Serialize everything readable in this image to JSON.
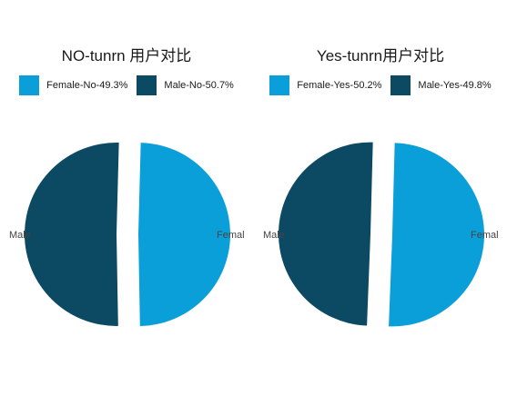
{
  "colors": {
    "female": "#0a9fd8",
    "male": "#0b4a62"
  },
  "chart_data": [
    {
      "type": "pie",
      "title": "NO-tunrn 用户对比",
      "legend": "top",
      "slices": [
        {
          "key": "female",
          "legend": "Female-No-49.3%",
          "label": "Femal",
          "value": 49.3
        },
        {
          "key": "male",
          "legend": "Male-No-50.7%",
          "label": "Male",
          "value": 50.7
        }
      ]
    },
    {
      "type": "pie",
      "title": "Yes-tunrn用户对比",
      "legend": "top",
      "slices": [
        {
          "key": "female",
          "legend": "Female-Yes-50.2%",
          "label": "Femal",
          "value": 50.2
        },
        {
          "key": "male",
          "legend": "Male-Yes-49.8%",
          "label": "Male",
          "value": 49.8
        }
      ]
    }
  ]
}
